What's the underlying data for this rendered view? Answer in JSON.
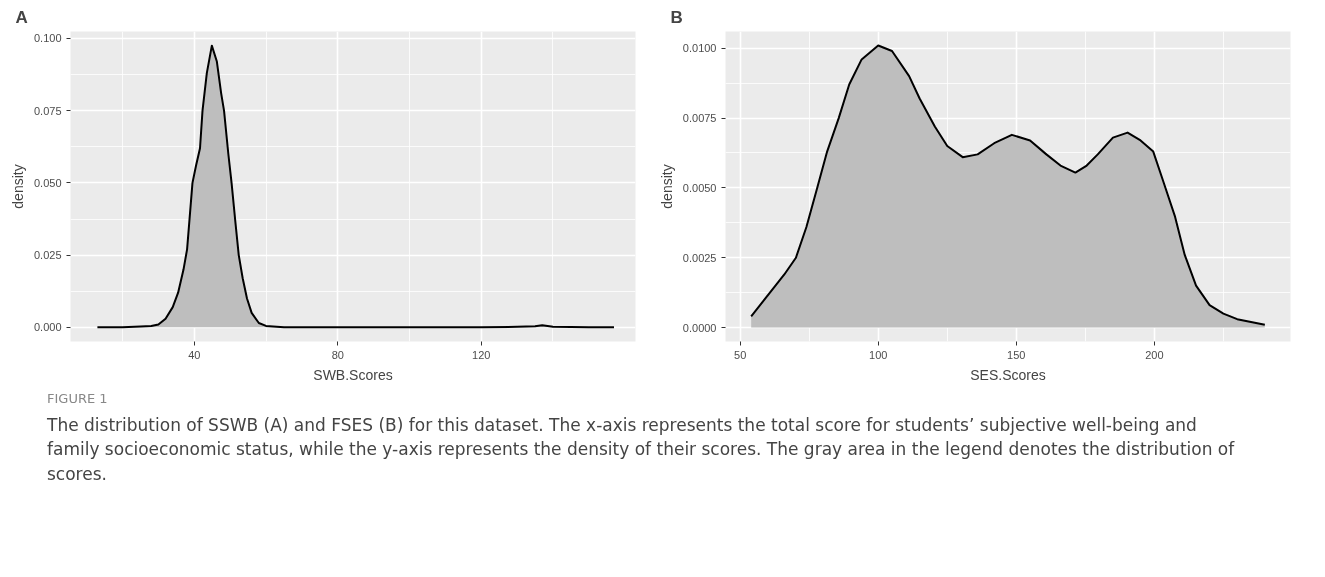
{
  "chart_data": [
    {
      "type": "area",
      "title": "A",
      "xlabel": "SWB.Scores",
      "ylabel": "density",
      "grid": true,
      "xlim": [
        5.5,
        163
      ],
      "xticks": [
        40,
        80,
        120
      ],
      "ylim": [
        -0.0049,
        0.1024
      ],
      "yticks": [
        {
          "value": 0,
          "label": "0.000"
        },
        {
          "value": 0.025,
          "label": "0.025"
        },
        {
          "value": 0.05,
          "label": "0.050"
        },
        {
          "value": 0.075,
          "label": "0.075"
        },
        {
          "value": 0.1,
          "label": "0.100"
        }
      ],
      "series": [
        {
          "color": "#bebebe",
          "x": [
            13,
            20,
            25,
            28,
            30,
            32,
            34,
            35.5,
            37,
            38,
            39.5,
            40.5,
            41.6,
            42.3,
            43.5,
            44.9,
            46.3,
            47.5,
            48.3,
            49.5,
            50.4,
            51.5,
            52.4,
            53.5,
            54.7,
            56,
            58,
            60,
            65,
            80,
            100,
            120,
            130,
            135,
            137,
            140,
            150,
            157
          ],
          "values": [
            0,
            0,
            0.0003,
            0.0005,
            0.001,
            0.003,
            0.007,
            0.012,
            0.02,
            0.027,
            0.05,
            0.056,
            0.062,
            0.075,
            0.088,
            0.0975,
            0.092,
            0.081,
            0.075,
            0.06,
            0.05,
            0.036,
            0.025,
            0.017,
            0.01,
            0.005,
            0.0015,
            0.0005,
            0,
            0,
            0,
            0,
            0.0002,
            0.0004,
            0.0007,
            0.0002,
            0,
            0
          ]
        }
      ],
      "annotations": [
        "FIGURE 1",
        "The distribution of SSWB (A) and FSES (B) for this dataset. The x-axis represents the total score for students’ subjective well-being and family socioeconomic status, while the y-axis represents the density of their scores. The gray area in the legend denotes the distribution of scores."
      ]
    },
    {
      "type": "area",
      "title": "B",
      "xlabel": "SES.Scores",
      "ylabel": "density",
      "grid": true,
      "xlim": [
        44.7,
        249.3
      ],
      "xticks": [
        50,
        100,
        150,
        200
      ],
      "ylim": [
        -0.0005,
        0.0106
      ],
      "yticks": [
        {
          "value": 0,
          "label": "0.0000"
        },
        {
          "value": 0.0025,
          "label": "0.0025"
        },
        {
          "value": 0.005,
          "label": "0.0050"
        },
        {
          "value": 0.0075,
          "label": "0.0075"
        },
        {
          "value": 0.01,
          "label": "0.0100"
        }
      ],
      "series": [
        {
          "color": "#bebebe",
          "x": [
            54,
            58,
            62,
            66,
            70.2,
            74,
            77.9,
            81.5,
            85.7,
            89.5,
            94,
            100,
            105,
            111.2,
            115,
            120.5,
            125,
            130.6,
            136,
            142,
            148.4,
            155,
            160.9,
            166,
            171.4,
            175.5,
            179.5,
            185,
            190.3,
            195,
            199.6,
            203,
            207.4,
            211,
            215.1,
            220,
            225,
            230,
            235,
            240
          ],
          "values": [
            0.0004,
            0.0009,
            0.0014,
            0.0019,
            0.0025,
            0.0036,
            0.005,
            0.0063,
            0.0075,
            0.0087,
            0.0096,
            0.0101,
            0.0099,
            0.009,
            0.0082,
            0.0072,
            0.0065,
            0.0061,
            0.0062,
            0.0066,
            0.0069,
            0.0067,
            0.0062,
            0.0058,
            0.00555,
            0.0058,
            0.0062,
            0.0068,
            0.00698,
            0.0067,
            0.0063,
            0.0053,
            0.004,
            0.0026,
            0.0015,
            0.0008,
            0.0005,
            0.0003,
            0.0002,
            0.0001
          ]
        }
      ]
    }
  ]
}
